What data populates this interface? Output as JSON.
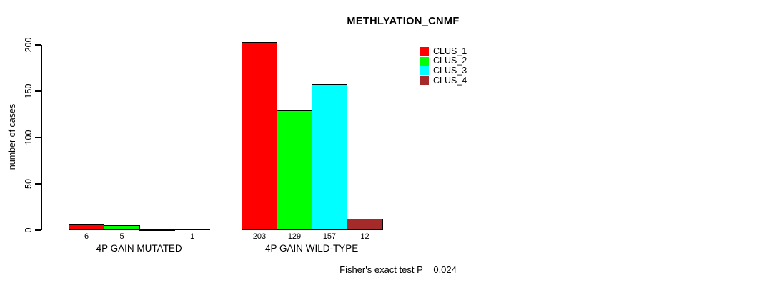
{
  "title": "METHLYATION_CNMF",
  "y_axis": {
    "label": "number of cases",
    "ticks": [
      0,
      50,
      100,
      150,
      200
    ]
  },
  "groups": [
    "4P GAIN MUTATED",
    "4P GAIN WILD-TYPE"
  ],
  "legend": [
    "CLUS_1",
    "CLUS_2",
    "CLUS_3",
    "CLUS_4"
  ],
  "annotation": "Fisher's exact test P = 0.024",
  "colors": {
    "clus_1": "#ff0000",
    "clus_2": "#00ff00",
    "clus_3": "#00ffff",
    "clus_4": "#a52a2a",
    "axis": "#000000",
    "background": "#ffffff"
  },
  "chart_data": {
    "type": "bar",
    "title": "METHLYATION_CNMF",
    "xlabel": "",
    "ylabel": "number of cases",
    "ylim": [
      0,
      200
    ],
    "yticks": [
      0,
      50,
      100,
      150,
      200
    ],
    "grid": false,
    "legend_position": "top-right-inside",
    "categories": [
      "4P GAIN MUTATED",
      "4P GAIN WILD-TYPE"
    ],
    "series": [
      {
        "name": "CLUS_1",
        "color": "#ff0000",
        "values": [
          6,
          203
        ]
      },
      {
        "name": "CLUS_2",
        "color": "#00ff00",
        "values": [
          5,
          129
        ]
      },
      {
        "name": "CLUS_3",
        "color": "#00ffff",
        "values": [
          0,
          157
        ]
      },
      {
        "name": "CLUS_4",
        "color": "#a52a2a",
        "values": [
          1,
          12
        ]
      }
    ],
    "bar_value_labels": [
      [
        "6",
        "5",
        "",
        "1"
      ],
      [
        "203",
        "129",
        "157",
        "12"
      ]
    ],
    "annotation": "Fisher's exact test P = 0.024"
  }
}
